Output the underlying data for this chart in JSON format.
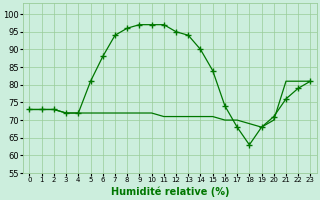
{
  "xlabel": "Humidité relative (%)",
  "x": [
    0,
    1,
    2,
    3,
    4,
    5,
    6,
    7,
    8,
    9,
    10,
    11,
    12,
    13,
    14,
    15,
    16,
    17,
    18,
    19,
    20,
    21,
    22,
    23
  ],
  "y_curve": [
    73,
    73,
    73,
    72,
    72,
    81,
    88,
    94,
    96,
    97,
    97,
    97,
    95,
    94,
    90,
    84,
    74,
    68,
    63,
    68,
    71,
    76,
    79,
    81
  ],
  "y_avg": [
    73,
    73,
    73,
    72,
    72,
    72,
    72,
    72,
    72,
    72,
    72,
    71,
    71,
    71,
    71,
    71,
    70,
    70,
    69,
    68,
    70,
    81,
    81,
    81
  ],
  "line_color": "#007700",
  "bg_color": "#cceedd",
  "grid_color": "#99cc99",
  "ylim": [
    55,
    103
  ],
  "yticks": [
    55,
    60,
    65,
    70,
    75,
    80,
    85,
    90,
    95,
    100
  ],
  "xlim": [
    -0.5,
    23.5
  ],
  "figsize": [
    3.2,
    2.0
  ],
  "dpi": 100
}
